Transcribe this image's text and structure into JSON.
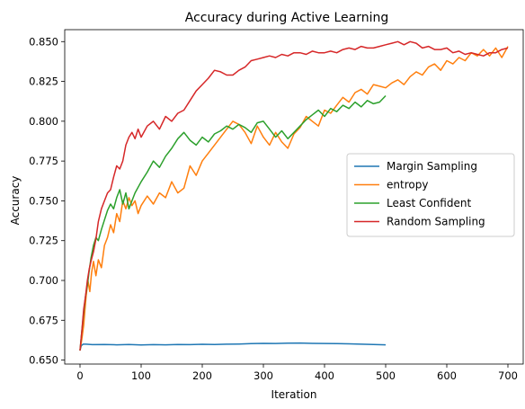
{
  "chart_data": {
    "type": "line",
    "title": "Accuracy during Active Learning",
    "xlabel": "Iteration",
    "ylabel": "Accuracy",
    "xlim": [
      -25,
      725
    ],
    "ylim": [
      0.6475,
      0.8575
    ],
    "xticks": [
      0,
      100,
      200,
      300,
      400,
      500,
      600,
      700
    ],
    "yticks": [
      0.65,
      0.675,
      0.7,
      0.725,
      0.75,
      0.775,
      0.8,
      0.825,
      0.85
    ],
    "ytick_labels": [
      "0.650",
      "0.675",
      "0.700",
      "0.725",
      "0.750",
      "0.775",
      "0.800",
      "0.825",
      "0.850"
    ],
    "grid": false,
    "legend_position": "center-right",
    "series": [
      {
        "name": "Margin Sampling",
        "color": "#1f77b4",
        "points": [
          [
            0,
            0.656
          ],
          [
            2,
            0.659
          ],
          [
            5,
            0.66
          ],
          [
            10,
            0.66
          ],
          [
            20,
            0.6597
          ],
          [
            40,
            0.6598
          ],
          [
            60,
            0.6596
          ],
          [
            80,
            0.6598
          ],
          [
            100,
            0.6595
          ],
          [
            120,
            0.6597
          ],
          [
            140,
            0.6596
          ],
          [
            160,
            0.6598
          ],
          [
            180,
            0.6597
          ],
          [
            200,
            0.6599
          ],
          [
            220,
            0.6598
          ],
          [
            240,
            0.66
          ],
          [
            260,
            0.6601
          ],
          [
            280,
            0.6603
          ],
          [
            300,
            0.6605
          ],
          [
            320,
            0.6604
          ],
          [
            340,
            0.6606
          ],
          [
            360,
            0.6607
          ],
          [
            380,
            0.6605
          ],
          [
            400,
            0.6604
          ],
          [
            420,
            0.6603
          ],
          [
            440,
            0.6602
          ],
          [
            460,
            0.66
          ],
          [
            480,
            0.6598
          ],
          [
            500,
            0.6596
          ]
        ]
      },
      {
        "name": "entropy",
        "color": "#ff7f0e",
        "points": [
          [
            0,
            0.656
          ],
          [
            3,
            0.663
          ],
          [
            6,
            0.672
          ],
          [
            8,
            0.681
          ],
          [
            10,
            0.69
          ],
          [
            13,
            0.7
          ],
          [
            16,
            0.693
          ],
          [
            19,
            0.705
          ],
          [
            22,
            0.712
          ],
          [
            26,
            0.703
          ],
          [
            30,
            0.713
          ],
          [
            35,
            0.708
          ],
          [
            40,
            0.722
          ],
          [
            45,
            0.727
          ],
          [
            50,
            0.735
          ],
          [
            55,
            0.73
          ],
          [
            60,
            0.742
          ],
          [
            65,
            0.737
          ],
          [
            70,
            0.75
          ],
          [
            75,
            0.745
          ],
          [
            80,
            0.752
          ],
          [
            85,
            0.747
          ],
          [
            90,
            0.75
          ],
          [
            95,
            0.742
          ],
          [
            100,
            0.747
          ],
          [
            110,
            0.753
          ],
          [
            120,
            0.748
          ],
          [
            130,
            0.755
          ],
          [
            140,
            0.752
          ],
          [
            150,
            0.762
          ],
          [
            160,
            0.755
          ],
          [
            170,
            0.758
          ],
          [
            180,
            0.772
          ],
          [
            190,
            0.766
          ],
          [
            200,
            0.775
          ],
          [
            210,
            0.78
          ],
          [
            220,
            0.785
          ],
          [
            230,
            0.79
          ],
          [
            240,
            0.795
          ],
          [
            250,
            0.8
          ],
          [
            260,
            0.798
          ],
          [
            270,
            0.793
          ],
          [
            280,
            0.786
          ],
          [
            290,
            0.797
          ],
          [
            300,
            0.79
          ],
          [
            310,
            0.785
          ],
          [
            320,
            0.793
          ],
          [
            330,
            0.787
          ],
          [
            340,
            0.783
          ],
          [
            350,
            0.792
          ],
          [
            360,
            0.796
          ],
          [
            370,
            0.803
          ],
          [
            380,
            0.8
          ],
          [
            390,
            0.797
          ],
          [
            400,
            0.807
          ],
          [
            410,
            0.805
          ],
          [
            420,
            0.81
          ],
          [
            430,
            0.815
          ],
          [
            440,
            0.812
          ],
          [
            450,
            0.818
          ],
          [
            460,
            0.82
          ],
          [
            470,
            0.817
          ],
          [
            480,
            0.823
          ],
          [
            490,
            0.822
          ],
          [
            500,
            0.821
          ],
          [
            510,
            0.824
          ],
          [
            520,
            0.826
          ],
          [
            530,
            0.823
          ],
          [
            540,
            0.828
          ],
          [
            550,
            0.831
          ],
          [
            560,
            0.829
          ],
          [
            570,
            0.834
          ],
          [
            580,
            0.836
          ],
          [
            590,
            0.832
          ],
          [
            600,
            0.838
          ],
          [
            610,
            0.836
          ],
          [
            620,
            0.84
          ],
          [
            630,
            0.838
          ],
          [
            640,
            0.843
          ],
          [
            650,
            0.841
          ],
          [
            660,
            0.845
          ],
          [
            670,
            0.841
          ],
          [
            680,
            0.846
          ],
          [
            690,
            0.84
          ],
          [
            700,
            0.847
          ]
        ]
      },
      {
        "name": "Least Confident",
        "color": "#2ca02c",
        "points": [
          [
            0,
            0.656
          ],
          [
            3,
            0.668
          ],
          [
            6,
            0.68
          ],
          [
            9,
            0.69
          ],
          [
            12,
            0.697
          ],
          [
            15,
            0.706
          ],
          [
            18,
            0.714
          ],
          [
            22,
            0.722
          ],
          [
            26,
            0.727
          ],
          [
            30,
            0.725
          ],
          [
            35,
            0.732
          ],
          [
            40,
            0.738
          ],
          [
            45,
            0.744
          ],
          [
            50,
            0.748
          ],
          [
            55,
            0.745
          ],
          [
            60,
            0.752
          ],
          [
            65,
            0.757
          ],
          [
            70,
            0.748
          ],
          [
            75,
            0.755
          ],
          [
            80,
            0.745
          ],
          [
            85,
            0.75
          ],
          [
            90,
            0.755
          ],
          [
            100,
            0.762
          ],
          [
            110,
            0.768
          ],
          [
            120,
            0.775
          ],
          [
            130,
            0.771
          ],
          [
            140,
            0.778
          ],
          [
            150,
            0.783
          ],
          [
            160,
            0.789
          ],
          [
            170,
            0.793
          ],
          [
            180,
            0.788
          ],
          [
            190,
            0.785
          ],
          [
            200,
            0.79
          ],
          [
            210,
            0.787
          ],
          [
            220,
            0.792
          ],
          [
            230,
            0.794
          ],
          [
            240,
            0.797
          ],
          [
            250,
            0.795
          ],
          [
            260,
            0.798
          ],
          [
            270,
            0.796
          ],
          [
            280,
            0.793
          ],
          [
            290,
            0.799
          ],
          [
            300,
            0.8
          ],
          [
            310,
            0.795
          ],
          [
            320,
            0.79
          ],
          [
            330,
            0.794
          ],
          [
            340,
            0.789
          ],
          [
            350,
            0.793
          ],
          [
            360,
            0.797
          ],
          [
            370,
            0.801
          ],
          [
            380,
            0.804
          ],
          [
            390,
            0.807
          ],
          [
            400,
            0.803
          ],
          [
            410,
            0.808
          ],
          [
            420,
            0.806
          ],
          [
            430,
            0.81
          ],
          [
            440,
            0.808
          ],
          [
            450,
            0.812
          ],
          [
            460,
            0.809
          ],
          [
            470,
            0.813
          ],
          [
            480,
            0.811
          ],
          [
            490,
            0.812
          ],
          [
            500,
            0.816
          ]
        ]
      },
      {
        "name": "Random Sampling",
        "color": "#d62728",
        "points": [
          [
            0,
            0.656
          ],
          [
            3,
            0.668
          ],
          [
            6,
            0.682
          ],
          [
            9,
            0.69
          ],
          [
            12,
            0.7
          ],
          [
            15,
            0.707
          ],
          [
            18,
            0.712
          ],
          [
            22,
            0.718
          ],
          [
            26,
            0.726
          ],
          [
            30,
            0.737
          ],
          [
            35,
            0.745
          ],
          [
            40,
            0.75
          ],
          [
            45,
            0.755
          ],
          [
            50,
            0.757
          ],
          [
            55,
            0.765
          ],
          [
            60,
            0.772
          ],
          [
            65,
            0.77
          ],
          [
            70,
            0.775
          ],
          [
            75,
            0.785
          ],
          [
            80,
            0.79
          ],
          [
            85,
            0.793
          ],
          [
            90,
            0.789
          ],
          [
            95,
            0.795
          ],
          [
            100,
            0.79
          ],
          [
            110,
            0.797
          ],
          [
            120,
            0.8
          ],
          [
            130,
            0.795
          ],
          [
            140,
            0.803
          ],
          [
            150,
            0.8
          ],
          [
            160,
            0.805
          ],
          [
            170,
            0.807
          ],
          [
            180,
            0.813
          ],
          [
            190,
            0.819
          ],
          [
            200,
            0.823
          ],
          [
            210,
            0.827
          ],
          [
            220,
            0.832
          ],
          [
            230,
            0.831
          ],
          [
            240,
            0.829
          ],
          [
            250,
            0.829
          ],
          [
            260,
            0.832
          ],
          [
            270,
            0.834
          ],
          [
            280,
            0.838
          ],
          [
            290,
            0.839
          ],
          [
            300,
            0.84
          ],
          [
            310,
            0.841
          ],
          [
            320,
            0.84
          ],
          [
            330,
            0.842
          ],
          [
            340,
            0.841
          ],
          [
            350,
            0.843
          ],
          [
            360,
            0.843
          ],
          [
            370,
            0.842
          ],
          [
            380,
            0.844
          ],
          [
            390,
            0.843
          ],
          [
            400,
            0.843
          ],
          [
            410,
            0.844
          ],
          [
            420,
            0.843
          ],
          [
            430,
            0.845
          ],
          [
            440,
            0.846
          ],
          [
            450,
            0.845
          ],
          [
            460,
            0.847
          ],
          [
            470,
            0.846
          ],
          [
            480,
            0.846
          ],
          [
            490,
            0.847
          ],
          [
            500,
            0.848
          ],
          [
            510,
            0.849
          ],
          [
            520,
            0.85
          ],
          [
            530,
            0.848
          ],
          [
            540,
            0.85
          ],
          [
            550,
            0.849
          ],
          [
            560,
            0.846
          ],
          [
            570,
            0.847
          ],
          [
            580,
            0.845
          ],
          [
            590,
            0.845
          ],
          [
            600,
            0.846
          ],
          [
            610,
            0.843
          ],
          [
            620,
            0.844
          ],
          [
            630,
            0.842
          ],
          [
            640,
            0.843
          ],
          [
            650,
            0.842
          ],
          [
            660,
            0.841
          ],
          [
            670,
            0.843
          ],
          [
            680,
            0.843
          ],
          [
            690,
            0.845
          ],
          [
            700,
            0.846
          ]
        ]
      }
    ]
  }
}
